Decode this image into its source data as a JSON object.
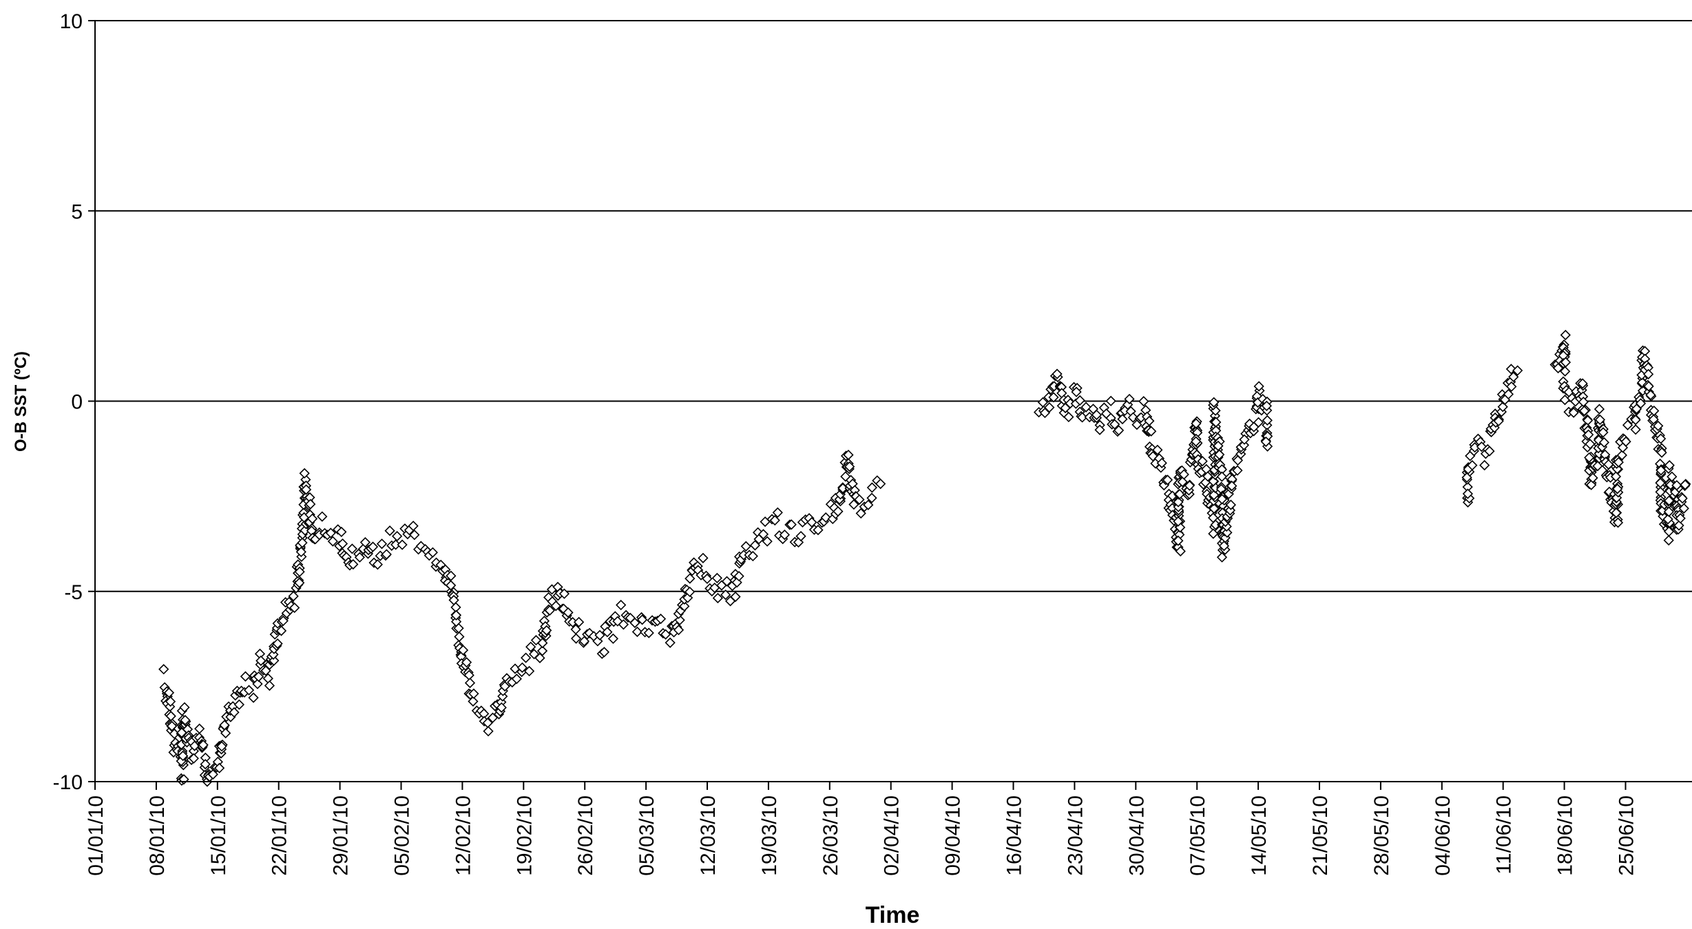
{
  "chart_data": {
    "type": "scatter",
    "title": "",
    "xlabel": "Time",
    "ylabel": "O-B SST (ºC)",
    "ylim": [
      -10,
      10
    ],
    "xlim": [
      "2010-01-01",
      "2010-07-02"
    ],
    "yticks": [
      "-10",
      "-5",
      "0",
      "5",
      "10"
    ],
    "xticks": [
      "01/01/10",
      "08/01/10",
      "15/01/10",
      "22/01/10",
      "29/01/10",
      "05/02/10",
      "12/02/10",
      "19/02/10",
      "26/02/10",
      "05/03/10",
      "12/03/10",
      "19/03/10",
      "26/03/10",
      "02/04/10",
      "09/04/10",
      "16/04/10",
      "23/04/10",
      "30/04/10",
      "07/05/10",
      "14/05/10",
      "21/05/10",
      "28/05/10",
      "04/06/10",
      "11/06/10",
      "18/06/10",
      "25/06/10"
    ],
    "grid": "horizontal",
    "legend": "none",
    "marker": "diamond",
    "marker_color": "#000000",
    "marker_fill": "#ffffff",
    "trace": [
      [
        "2010-01-09",
        -7.3
      ],
      [
        "2010-01-10",
        -9.0
      ],
      [
        "2010-01-11",
        -9.8
      ],
      [
        "2010-01-11",
        -8.2
      ],
      [
        "2010-01-12",
        -9.3
      ],
      [
        "2010-01-13",
        -8.8
      ],
      [
        "2010-01-14",
        -10.0
      ],
      [
        "2010-01-15",
        -9.7
      ],
      [
        "2010-01-16",
        -8.4
      ],
      [
        "2010-01-17",
        -8.0
      ],
      [
        "2010-01-18",
        -7.4
      ],
      [
        "2010-01-19",
        -7.6
      ],
      [
        "2010-01-20",
        -6.8
      ],
      [
        "2010-01-21",
        -7.2
      ],
      [
        "2010-01-22",
        -6.0
      ],
      [
        "2010-01-23",
        -5.5
      ],
      [
        "2010-01-24",
        -5.0
      ],
      [
        "2010-01-25",
        -3.0
      ],
      [
        "2010-01-25",
        -2.0
      ],
      [
        "2010-01-26",
        -3.6
      ],
      [
        "2010-01-27",
        -3.2
      ],
      [
        "2010-01-29",
        -3.6
      ],
      [
        "2010-01-30",
        -4.2
      ],
      [
        "2010-02-01",
        -3.8
      ],
      [
        "2010-02-02",
        -4.2
      ],
      [
        "2010-02-04",
        -3.6
      ],
      [
        "2010-02-06",
        -3.4
      ],
      [
        "2010-02-08",
        -3.8
      ],
      [
        "2010-02-10",
        -4.4
      ],
      [
        "2010-02-11",
        -5.2
      ],
      [
        "2010-02-12",
        -6.8
      ],
      [
        "2010-02-13",
        -7.6
      ],
      [
        "2010-02-15",
        -8.4
      ],
      [
        "2010-02-16",
        -8.2
      ],
      [
        "2010-02-17",
        -7.4
      ],
      [
        "2010-02-19",
        -7.0
      ],
      [
        "2010-02-21",
        -6.4
      ],
      [
        "2010-02-22",
        -5.4
      ],
      [
        "2010-02-23",
        -5.0
      ],
      [
        "2010-02-24",
        -5.6
      ],
      [
        "2010-02-26",
        -6.2
      ],
      [
        "2010-02-28",
        -6.4
      ],
      [
        "2010-03-02",
        -5.6
      ],
      [
        "2010-03-04",
        -6.0
      ],
      [
        "2010-03-06",
        -5.8
      ],
      [
        "2010-03-08",
        -6.2
      ],
      [
        "2010-03-10",
        -4.8
      ],
      [
        "2010-03-11",
        -4.2
      ],
      [
        "2010-03-13",
        -4.9
      ],
      [
        "2010-03-15",
        -5.0
      ],
      [
        "2010-03-16",
        -4.2
      ],
      [
        "2010-03-18",
        -3.6
      ],
      [
        "2010-03-20",
        -3.2
      ],
      [
        "2010-03-22",
        -3.6
      ],
      [
        "2010-03-24",
        -3.2
      ],
      [
        "2010-03-26",
        -3.0
      ],
      [
        "2010-03-27",
        -2.6
      ],
      [
        "2010-03-28",
        -1.6
      ],
      [
        "2010-03-29",
        -2.8
      ],
      [
        "2010-03-30",
        -2.6
      ],
      [
        "2010-03-31",
        -2.4
      ],
      [
        "2010-04-01",
        -2.2
      ],
      null,
      [
        "2010-04-19",
        -0.4
      ],
      [
        "2010-04-20",
        -0.1
      ],
      [
        "2010-04-21",
        0.6
      ],
      [
        "2010-04-22",
        -0.2
      ],
      [
        "2010-04-23",
        0.2
      ],
      [
        "2010-04-24",
        -0.3
      ],
      [
        "2010-04-25",
        -0.1
      ],
      [
        "2010-04-26",
        -0.5
      ],
      [
        "2010-04-27",
        -0.2
      ],
      [
        "2010-04-28",
        -0.6
      ],
      [
        "2010-04-29",
        -0.1
      ],
      [
        "2010-04-30",
        -0.4
      ],
      [
        "2010-05-01",
        -0.3
      ],
      [
        "2010-05-02",
        -1.4
      ],
      [
        "2010-05-03",
        -1.8
      ],
      [
        "2010-05-04",
        -2.6
      ],
      [
        "2010-05-05",
        -3.8
      ],
      [
        "2010-05-05",
        -1.8
      ],
      [
        "2010-05-06",
        -2.4
      ],
      [
        "2010-05-07",
        -0.6
      ],
      [
        "2010-05-07",
        -1.6
      ],
      [
        "2010-05-08",
        -2.0
      ],
      [
        "2010-05-09",
        -3.2
      ],
      [
        "2010-05-09",
        -0.2
      ],
      [
        "2010-05-10",
        -2.6
      ],
      [
        "2010-05-10",
        -4.0
      ],
      [
        "2010-05-11",
        -2.0
      ],
      [
        "2010-05-12",
        -1.4
      ],
      [
        "2010-05-13",
        -0.8
      ],
      [
        "2010-05-14",
        -0.4
      ],
      [
        "2010-05-14",
        0.2
      ],
      [
        "2010-05-15",
        -0.2
      ],
      [
        "2010-05-15",
        -1.2
      ],
      null,
      [
        "2010-06-07",
        -2.6
      ],
      [
        "2010-06-07",
        -1.8
      ],
      [
        "2010-06-08",
        -1.2
      ],
      [
        "2010-06-09",
        -1.4
      ],
      [
        "2010-06-10",
        -0.6
      ],
      [
        "2010-06-11",
        0.0
      ],
      [
        "2010-06-12",
        0.6
      ],
      [
        "2010-06-13",
        0.8
      ],
      null,
      [
        "2010-06-17",
        0.9
      ],
      [
        "2010-06-18",
        1.6
      ],
      [
        "2010-06-18",
        0.2
      ],
      [
        "2010-06-19",
        -0.2
      ],
      [
        "2010-06-20",
        0.4
      ],
      [
        "2010-06-21",
        -1.4
      ],
      [
        "2010-06-21",
        -2.2
      ],
      [
        "2010-06-22",
        -1.4
      ],
      [
        "2010-06-22",
        -0.4
      ],
      [
        "2010-06-23",
        -2.0
      ],
      [
        "2010-06-24",
        -3.2
      ],
      [
        "2010-06-24",
        -1.6
      ],
      [
        "2010-06-25",
        -0.8
      ],
      [
        "2010-06-26",
        -0.6
      ],
      [
        "2010-06-26",
        -0.2
      ],
      [
        "2010-06-27",
        0.4
      ],
      [
        "2010-06-27",
        1.2
      ],
      [
        "2010-06-28",
        0.0
      ],
      [
        "2010-06-29",
        -1.2
      ],
      [
        "2010-06-29",
        -2.6
      ],
      [
        "2010-06-30",
        -3.4
      ],
      [
        "2010-06-30",
        -1.8
      ],
      [
        "2010-07-01",
        -2.4
      ],
      [
        "2010-07-01",
        -3.2
      ],
      [
        "2010-07-02",
        -2.2
      ]
    ]
  }
}
